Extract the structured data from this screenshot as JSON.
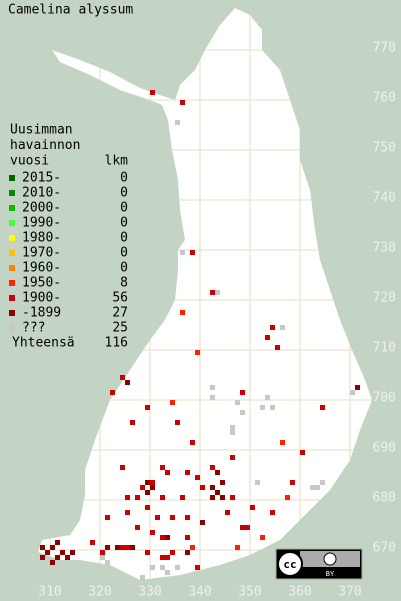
{
  "chart_data": {
    "type": "map",
    "title": "Camelina alyssum",
    "legend_title": [
      "Uusimman",
      "havainnon",
      "vuosi"
    ],
    "count_header": "lkm",
    "total_label": "Yhteensä",
    "total": 116,
    "xlim": [
      300,
      380
    ],
    "ylim": [
      660,
      780
    ],
    "xticks": [
      310,
      320,
      330,
      340,
      350,
      360,
      370
    ],
    "yticks": [
      670,
      680,
      690,
      700,
      710,
      720,
      730,
      740,
      750,
      760,
      770
    ],
    "grid": true,
    "series": [
      {
        "name": "2015-",
        "color": "#006400",
        "count": 0,
        "x": [],
        "y": []
      },
      {
        "name": "2010-",
        "color": "#008c00",
        "count": 0,
        "x": [],
        "y": []
      },
      {
        "name": "2000-",
        "color": "#00c000",
        "count": 0,
        "x": [],
        "y": []
      },
      {
        "name": "1990-",
        "color": "#40ff40",
        "count": 0,
        "x": [],
        "y": []
      },
      {
        "name": "1980-",
        "color": "#ffff00",
        "count": 0,
        "x": [],
        "y": []
      },
      {
        "name": "1970-",
        "color": "#ffc000",
        "count": 0,
        "x": [],
        "y": []
      },
      {
        "name": "1960-",
        "color": "#ff8000",
        "count": 0,
        "x": [],
        "y": []
      },
      {
        "name": "1950-",
        "color": "#ff2000",
        "count": 8,
        "x": [
          336,
          339,
          334,
          356,
          357,
          352,
          347,
          338
        ],
        "y": [
          717,
          709,
          699,
          691,
          680,
          672,
          670,
          670
        ]
      },
      {
        "name": "1900-",
        "color": "#cc0000",
        "count": 56,
        "x": [
          330,
          336,
          338,
          342,
          354,
          353,
          355,
          322,
          348,
          364,
          329,
          326,
          335,
          337,
          333,
          330,
          328,
          339,
          340,
          332,
          325,
          327,
          329,
          346,
          325,
          321,
          327,
          334,
          337,
          331,
          337,
          348,
          349,
          332,
          324,
          325,
          320,
          329,
          332,
          333,
          334,
          339,
          330,
          318,
          350,
          342,
          332,
          324,
          336,
          345,
          354,
          358,
          360,
          324,
          338,
          346
        ],
        "y": [
          761,
          759,
          729,
          721,
          714,
          712,
          710,
          701,
          701,
          698,
          698,
          695,
          695,
          685,
          685,
          683,
          682,
          684,
          682,
          680,
          680,
          680,
          678,
          680,
          677,
          676,
          674,
          676,
          676,
          676,
          672,
          674,
          674,
          672,
          670,
          670,
          669,
          669,
          668,
          668,
          669,
          666,
          673,
          671,
          678,
          686,
          686,
          686,
          680,
          677,
          677,
          683,
          689,
          704,
          691,
          688
        ]
      },
      {
        "name": "-1899",
        "color": "#8c0000",
        "count": 27,
        "x": [
          308,
          310,
          311,
          312,
          311,
          313,
          309,
          314,
          329,
          329,
          343,
          342,
          343,
          344,
          340,
          337,
          321,
          371,
          325,
          308,
          344,
          330,
          342,
          333,
          326,
          323,
          310
        ],
        "y": [
          670,
          670,
          671,
          669,
          668,
          668,
          669,
          669,
          683,
          681,
          685,
          682,
          681,
          680,
          675,
          669,
          670,
          702,
          703,
          668,
          683,
          682,
          680,
          672,
          670,
          670,
          667
        ]
      },
      {
        "name": "???",
        "color": "#c8c8c8",
        "count": 25,
        "x": [
          335,
          336,
          343,
          356,
          342,
          342,
          353,
          352,
          354,
          348,
          370,
          346,
          351,
          363,
          364,
          362,
          320,
          330,
          328,
          332,
          335,
          346,
          347,
          333,
          321
        ],
        "y": [
          755,
          729,
          721,
          714,
          702,
          700,
          700,
          698,
          698,
          697,
          701,
          694,
          683,
          682,
          683,
          682,
          668,
          666,
          664,
          666,
          666,
          693,
          699,
          665,
          667
        ]
      }
    ]
  },
  "license": {
    "cc": "cc",
    "by": "BY"
  }
}
